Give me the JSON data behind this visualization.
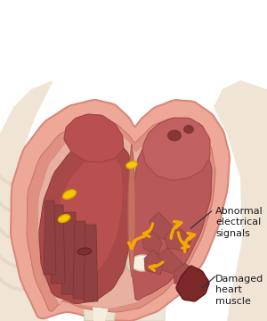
{
  "bg_color": "#ffffff",
  "arrow_color": "#f5a800",
  "label_color": "#1a1a1a",
  "label1": "Abnormal\nelectrical\nsignals",
  "label2": "Damaged\nheart\nmuscle",
  "label_fontsize": 8.0,
  "figsize": [
    3.0,
    3.6
  ],
  "dpi": 100
}
